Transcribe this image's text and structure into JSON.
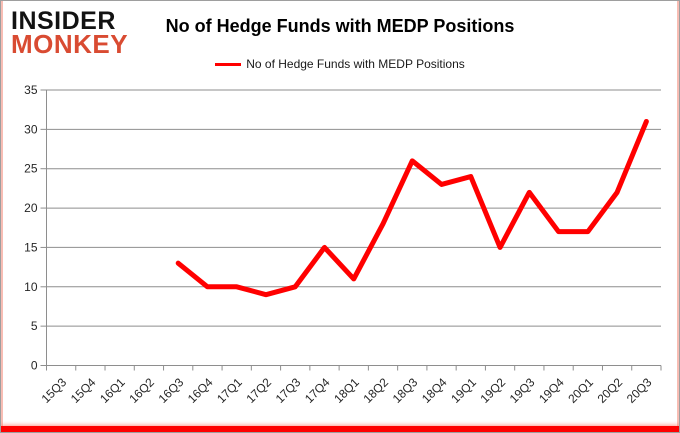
{
  "logo": {
    "line1": "INSIDER",
    "line2": "MONKEY"
  },
  "title": "No of Hedge Funds with MEDP Positions",
  "legend": {
    "label": "No of Hedge Funds with MEDP Positions"
  },
  "colors": {
    "line": "#ff0000",
    "grid": "#8e8e8e",
    "axis": "#8e8e8e",
    "tick_label": "#262626",
    "title": "#000000",
    "logo_black": "#121212",
    "logo_red": "#d94b32",
    "bottom_bar": "#fe0000",
    "frame_border": "#9e9e9e"
  },
  "chart_data": {
    "type": "line",
    "title": "No of Hedge Funds with MEDP Positions",
    "xlabel": "",
    "ylabel": "",
    "categories": [
      "15Q3",
      "15Q4",
      "16Q1",
      "16Q2",
      "16Q3",
      "16Q4",
      "17Q1",
      "17Q2",
      "17Q3",
      "17Q4",
      "18Q1",
      "18Q2",
      "18Q3",
      "18Q4",
      "19Q1",
      "19Q2",
      "19Q3",
      "19Q4",
      "20Q1",
      "20Q2",
      "20Q3"
    ],
    "series": [
      {
        "name": "No of Hedge Funds with MEDP Positions",
        "color": "#ff0000",
        "values": [
          null,
          null,
          null,
          null,
          13,
          10,
          10,
          9,
          10,
          15,
          11,
          18,
          26,
          23,
          24,
          15,
          22,
          17,
          17,
          22,
          31
        ]
      }
    ],
    "ylim": [
      0,
      35
    ],
    "yticks": [
      0,
      5,
      10,
      15,
      20,
      25,
      30,
      35
    ],
    "grid": true,
    "legend_position": "top-center"
  }
}
